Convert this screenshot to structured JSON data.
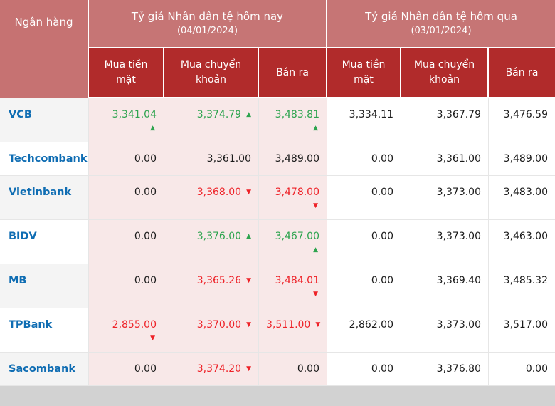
{
  "colors": {
    "group_header_bg": "#c67575",
    "subheader_bg": "#b12b2b",
    "header_text": "#ffffff",
    "today_cell_bg": "#f8e8e8",
    "bank_cell_alt_bg": "#f4f4f4",
    "bank_link": "#0f6db3",
    "up": "#2ea44f",
    "down": "#ee2228",
    "value_default": "#1a1a1a",
    "grid_line": "#e6e6e6"
  },
  "table": {
    "corner_header": "Ngân hàng",
    "up_arrow": "▲",
    "down_arrow": "▼",
    "groups": [
      {
        "title": "Tỷ giá Nhân dân tệ hôm nay",
        "date": "(04/01/2024)",
        "columns": [
          "Mua tiền mặt",
          "Mua chuyển khoản",
          "Bán ra"
        ]
      },
      {
        "title": "Tỷ giá Nhân dân tệ hôm qua",
        "date": "(03/01/2024)",
        "columns": [
          "Mua tiền mặt",
          "Mua chuyển khoản",
          "Bán ra"
        ]
      }
    ],
    "rows": [
      {
        "bank": "VCB",
        "today": [
          {
            "value": "3,341.04",
            "trend": "up",
            "arrow": "below"
          },
          {
            "value": "3,374.79",
            "trend": "up",
            "arrow": "inline"
          },
          {
            "value": "3,483.81",
            "trend": "up",
            "arrow": "below"
          }
        ],
        "yesterday": [
          {
            "value": "3,334.11"
          },
          {
            "value": "3,367.79"
          },
          {
            "value": "3,476.59"
          }
        ]
      },
      {
        "bank": "Techcombank",
        "today": [
          {
            "value": "0.00"
          },
          {
            "value": "3,361.00"
          },
          {
            "value": "3,489.00"
          }
        ],
        "yesterday": [
          {
            "value": "0.00"
          },
          {
            "value": "3,361.00"
          },
          {
            "value": "3,489.00"
          }
        ]
      },
      {
        "bank": "Vietinbank",
        "today": [
          {
            "value": "0.00"
          },
          {
            "value": "3,368.00",
            "trend": "down",
            "arrow": "inline"
          },
          {
            "value": "3,478.00",
            "trend": "down",
            "arrow": "below"
          }
        ],
        "yesterday": [
          {
            "value": "0.00"
          },
          {
            "value": "3,373.00"
          },
          {
            "value": "3,483.00"
          }
        ]
      },
      {
        "bank": "BIDV",
        "today": [
          {
            "value": "0.00"
          },
          {
            "value": "3,376.00",
            "trend": "up",
            "arrow": "inline"
          },
          {
            "value": "3,467.00",
            "trend": "up",
            "arrow": "below"
          }
        ],
        "yesterday": [
          {
            "value": "0.00"
          },
          {
            "value": "3,373.00"
          },
          {
            "value": "3,463.00"
          }
        ]
      },
      {
        "bank": "MB",
        "today": [
          {
            "value": "0.00"
          },
          {
            "value": "3,365.26",
            "trend": "down",
            "arrow": "inline"
          },
          {
            "value": "3,484.01",
            "trend": "down",
            "arrow": "below"
          }
        ],
        "yesterday": [
          {
            "value": "0.00"
          },
          {
            "value": "3,369.40"
          },
          {
            "value": "3,485.32"
          }
        ]
      },
      {
        "bank": "TPBank",
        "today": [
          {
            "value": "2,855.00",
            "trend": "down",
            "arrow": "below"
          },
          {
            "value": "3,370.00",
            "trend": "down",
            "arrow": "inline"
          },
          {
            "value": "3,511.00",
            "trend": "down",
            "arrow": "inline"
          }
        ],
        "yesterday": [
          {
            "value": "2,862.00"
          },
          {
            "value": "3,373.00"
          },
          {
            "value": "3,517.00"
          }
        ]
      },
      {
        "bank": "Sacombank",
        "today": [
          {
            "value": "0.00"
          },
          {
            "value": "3,374.20",
            "trend": "down",
            "arrow": "inline"
          },
          {
            "value": "0.00"
          }
        ],
        "yesterday": [
          {
            "value": "0.00"
          },
          {
            "value": "3,376.80"
          },
          {
            "value": "0.00"
          }
        ]
      }
    ]
  }
}
